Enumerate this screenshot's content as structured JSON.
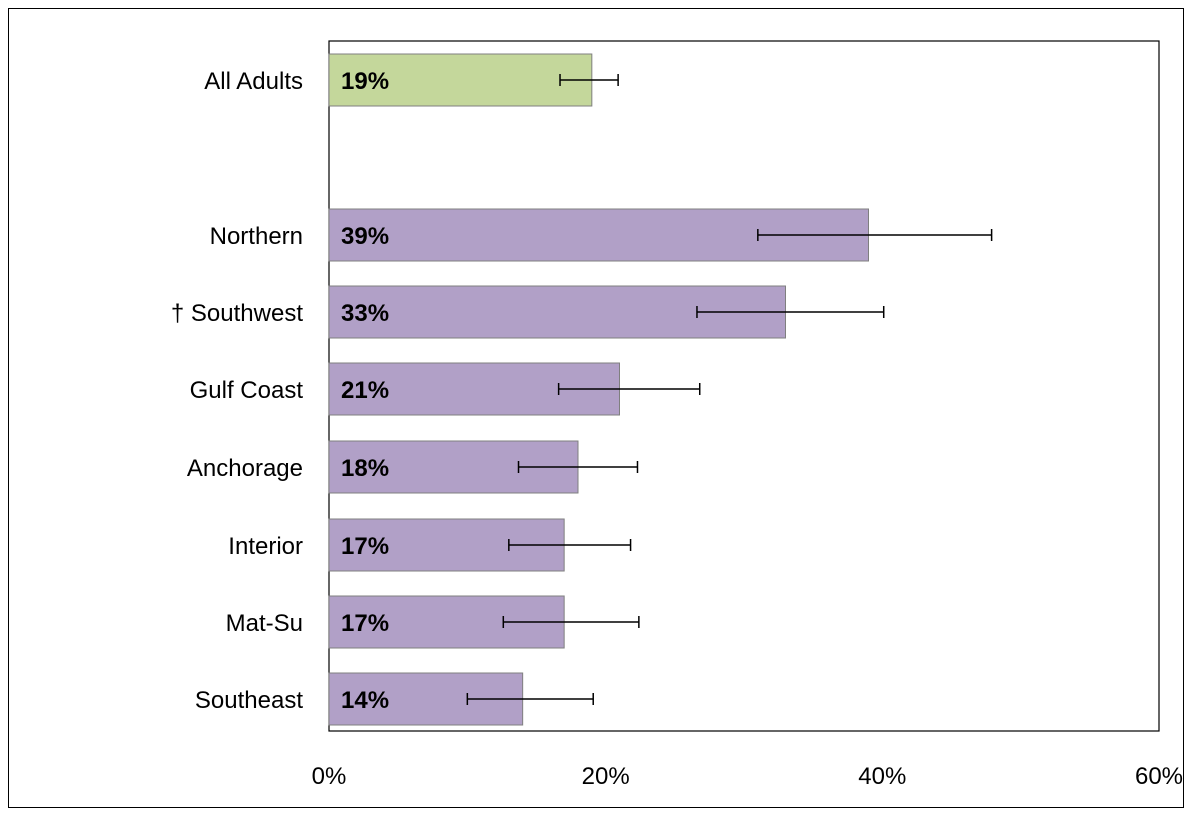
{
  "chart_data": {
    "type": "bar",
    "orientation": "horizontal",
    "categories": [
      "All Adults",
      "Northern",
      "† Southwest",
      "Gulf Coast",
      "Anchorage",
      "Interior",
      "Mat-Su",
      "Southeast"
    ],
    "values": [
      19,
      39,
      33,
      21,
      18,
      17,
      17,
      14
    ],
    "value_labels": [
      "19%",
      "39%",
      "33%",
      "21%",
      "18%",
      "17%",
      "17%",
      "14%"
    ],
    "error_low": [
      16.7,
      31.0,
      26.6,
      16.6,
      13.7,
      13.0,
      12.6,
      10.0
    ],
    "error_high": [
      20.9,
      47.9,
      40.1,
      26.8,
      22.3,
      21.8,
      22.4,
      19.1
    ],
    "colors": [
      "#c4d79b",
      "#b1a0c7",
      "#b1a0c7",
      "#b1a0c7",
      "#b1a0c7",
      "#b1a0c7",
      "#b1a0c7",
      "#b1a0c7"
    ],
    "bar_stroke": "#7f7f7f",
    "xlim": [
      0,
      60
    ],
    "xticks": [
      "0%",
      "20%",
      "40%",
      "60%"
    ],
    "title": "",
    "xlabel": "",
    "ylabel": "",
    "grid": false,
    "legend": "none"
  }
}
